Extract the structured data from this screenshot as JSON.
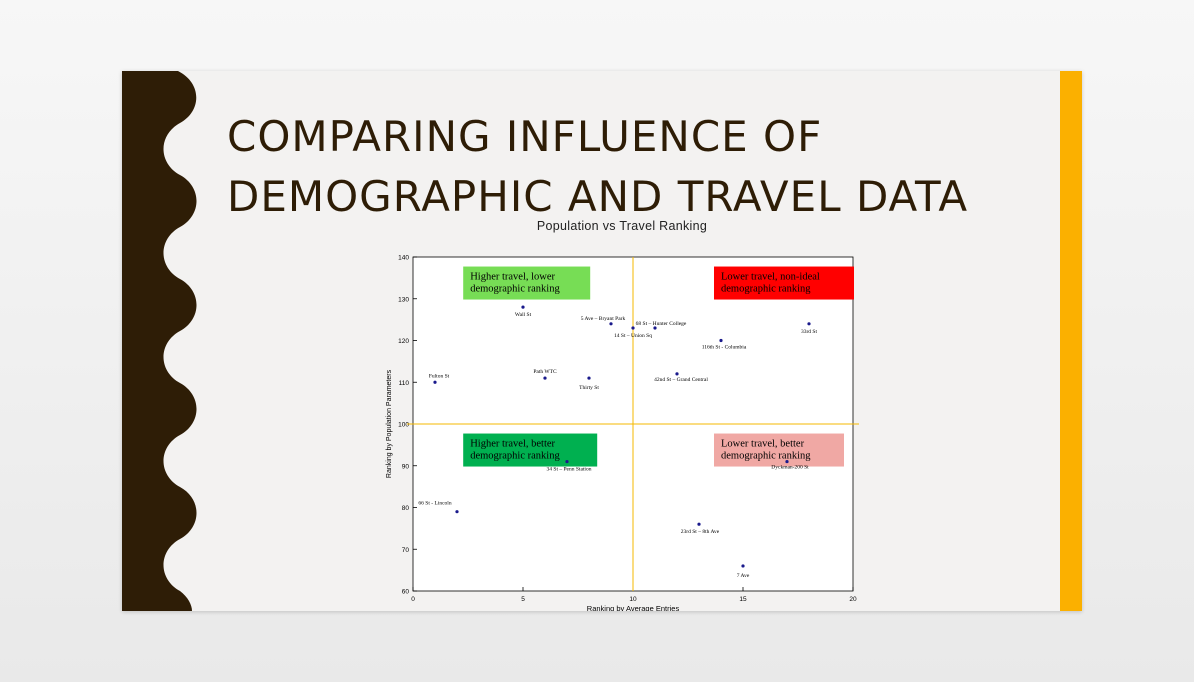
{
  "slide": {
    "title": "COMPARING INFLUENCE OF\nDEMOGRAPHIC AND TRAVEL DATA",
    "colors": {
      "left_band": "#2e1d06",
      "right_band": "#fbb000",
      "background": "#f3f2f1",
      "title_text": "#2e1d06"
    }
  },
  "chart_data": {
    "type": "scatter",
    "title": "Population vs Travel Ranking",
    "xlabel": "Ranking by Average Entries",
    "ylabel": "Ranking by Population Parameters",
    "xlim": [
      0,
      20
    ],
    "ylim": [
      60,
      140
    ],
    "xticks": [
      0,
      5,
      10,
      15,
      20
    ],
    "yticks": [
      60,
      70,
      80,
      90,
      100,
      110,
      120,
      130,
      140
    ],
    "grid": false,
    "reference_lines": {
      "x": 10,
      "y": 100,
      "color": "#f5b800"
    },
    "quadrant_labels": [
      {
        "text": [
          "Higher travel, lower",
          "demographic ranking"
        ],
        "bg": "#77dd55",
        "quadrant": "top-left"
      },
      {
        "text": [
          "Lower travel, non-ideal",
          "demographic ranking"
        ],
        "bg": "#ff0000",
        "quadrant": "top-right"
      },
      {
        "text": [
          "Higher travel, better",
          "demographic ranking"
        ],
        "bg": "#00b050",
        "quadrant": "bottom-left"
      },
      {
        "text": [
          "Lower travel, better",
          "demographic ranking"
        ],
        "bg": "#f0a8a4",
        "quadrant": "bottom-right"
      }
    ],
    "points": [
      {
        "label": "Wall St",
        "x": 5,
        "y": 128
      },
      {
        "label": "5 Ave – Bryant Park",
        "x": 9,
        "y": 124
      },
      {
        "label": "14 St – Union Sq",
        "x": 10,
        "y": 123
      },
      {
        "label": "68 St – Hunter College",
        "x": 11,
        "y": 123
      },
      {
        "label": "33rd St",
        "x": 18,
        "y": 124
      },
      {
        "label": "116th St - Columbia",
        "x": 14,
        "y": 120
      },
      {
        "label": "Fulton St",
        "x": 1,
        "y": 110
      },
      {
        "label": "Path WTC",
        "x": 6,
        "y": 111
      },
      {
        "label": "Thirty St",
        "x": 8,
        "y": 111
      },
      {
        "label": "42nd St – Grand Central",
        "x": 12,
        "y": 112
      },
      {
        "label": "34 St – Penn Station",
        "x": 7,
        "y": 91
      },
      {
        "label": "Dyckman-200 St",
        "x": 17,
        "y": 91
      },
      {
        "label": "66 St - Lincoln",
        "x": 2,
        "y": 79
      },
      {
        "label": "23rd St – 8th Ave",
        "x": 13,
        "y": 76
      },
      {
        "label": "7 Ave",
        "x": 15,
        "y": 66
      }
    ]
  }
}
